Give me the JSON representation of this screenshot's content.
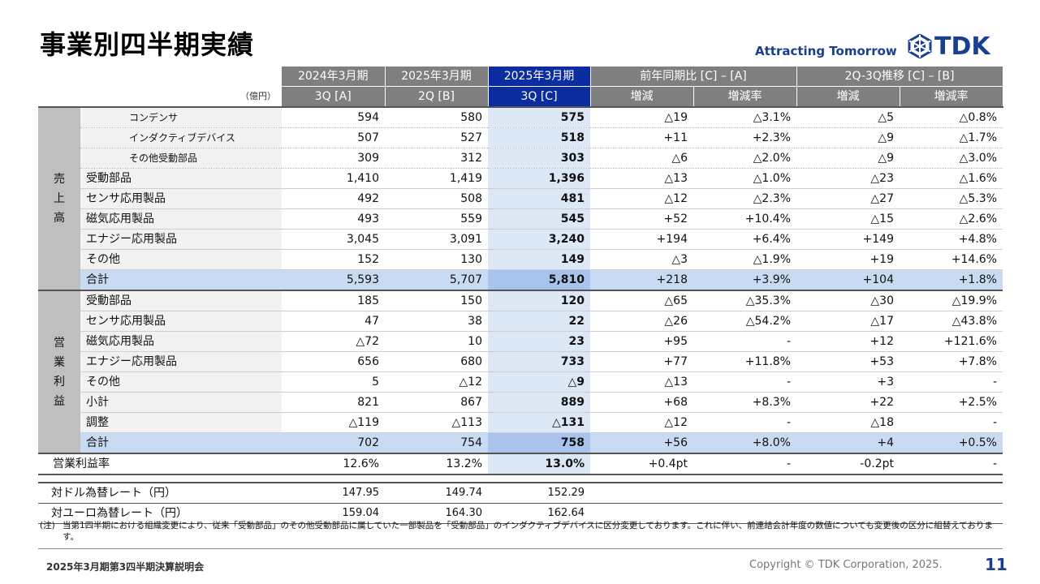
{
  "title": "事業別四半期実績",
  "tagline": "Attracting Tomorrow",
  "logo_text": "TDK",
  "header": {
    "periods": [
      "2024年3月期",
      "2025年3月期",
      "2025年3月期"
    ],
    "yoy_group": "前年同期比 [C] – [A]",
    "qoq_group": "2Q-3Q推移 [C] – [B]",
    "unit": "（億円）",
    "quarters": [
      "3Q [A]",
      "2Q [B]",
      "3Q [C]"
    ],
    "change": "増減",
    "rate": "増減率"
  },
  "sales": {
    "category": [
      "売",
      "上",
      "高"
    ],
    "rows": [
      {
        "label": "コンデンサ",
        "a": "594",
        "b": "580",
        "c": "575",
        "yoy": "△19",
        "yoy_rate": "△3.1%",
        "qoq": "△5",
        "qoq_rate": "△0.8%"
      },
      {
        "label": "インダクティブデバイス",
        "a": "507",
        "b": "527",
        "c": "518",
        "yoy": "+11",
        "yoy_rate": "+2.3%",
        "qoq": "△9",
        "qoq_rate": "△1.7%"
      },
      {
        "label": "その他受動部品",
        "a": "309",
        "b": "312",
        "c": "303",
        "yoy": "△6",
        "yoy_rate": "△2.0%",
        "qoq": "△9",
        "qoq_rate": "△3.0%"
      },
      {
        "label": "受動部品",
        "a": "1,410",
        "b": "1,419",
        "c": "1,396",
        "yoy": "△13",
        "yoy_rate": "△1.0%",
        "qoq": "△23",
        "qoq_rate": "△1.6%"
      },
      {
        "label": "センサ応用製品",
        "a": "492",
        "b": "508",
        "c": "481",
        "yoy": "△12",
        "yoy_rate": "△2.3%",
        "qoq": "△27",
        "qoq_rate": "△5.3%"
      },
      {
        "label": "磁気応用製品",
        "a": "493",
        "b": "559",
        "c": "545",
        "yoy": "+52",
        "yoy_rate": "+10.4%",
        "qoq": "△15",
        "qoq_rate": "△2.6%"
      },
      {
        "label": "エナジー応用製品",
        "a": "3,045",
        "b": "3,091",
        "c": "3,240",
        "yoy": "+194",
        "yoy_rate": "+6.4%",
        "qoq": "+149",
        "qoq_rate": "+4.8%"
      },
      {
        "label": "その他",
        "a": "152",
        "b": "130",
        "c": "149",
        "yoy": "△3",
        "yoy_rate": "△1.9%",
        "qoq": "+19",
        "qoq_rate": "+14.6%"
      },
      {
        "label": "合計",
        "a": "5,593",
        "b": "5,707",
        "c": "5,810",
        "yoy": "+218",
        "yoy_rate": "+3.9%",
        "qoq": "+104",
        "qoq_rate": "+1.8%"
      }
    ]
  },
  "op": {
    "category": [
      "営",
      "業",
      "利",
      "益"
    ],
    "rows": [
      {
        "label": "受動部品",
        "a": "185",
        "b": "150",
        "c": "120",
        "yoy": "△65",
        "yoy_rate": "△35.3%",
        "qoq": "△30",
        "qoq_rate": "△19.9%"
      },
      {
        "label": "センサ応用製品",
        "a": "47",
        "b": "38",
        "c": "22",
        "yoy": "△26",
        "yoy_rate": "△54.2%",
        "qoq": "△17",
        "qoq_rate": "△43.8%"
      },
      {
        "label": "磁気応用製品",
        "a": "△72",
        "b": "10",
        "c": "23",
        "yoy": "+95",
        "yoy_rate": "-",
        "qoq": "+12",
        "qoq_rate": "+121.6%"
      },
      {
        "label": "エナジー応用製品",
        "a": "656",
        "b": "680",
        "c": "733",
        "yoy": "+77",
        "yoy_rate": "+11.8%",
        "qoq": "+53",
        "qoq_rate": "+7.8%"
      },
      {
        "label": "その他",
        "a": "5",
        "b": "△12",
        "c": "△9",
        "yoy": "△13",
        "yoy_rate": "-",
        "qoq": "+3",
        "qoq_rate": "-"
      },
      {
        "label": "小計",
        "a": "821",
        "b": "867",
        "c": "889",
        "yoy": "+68",
        "yoy_rate": "+8.3%",
        "qoq": "+22",
        "qoq_rate": "+2.5%"
      },
      {
        "label": "調整",
        "a": "△119",
        "b": "△113",
        "c": "△131",
        "yoy": "△12",
        "yoy_rate": "-",
        "qoq": "△18",
        "qoq_rate": "-"
      },
      {
        "label": "合計",
        "a": "702",
        "b": "754",
        "c": "758",
        "yoy": "+56",
        "yoy_rate": "+8.0%",
        "qoq": "+4",
        "qoq_rate": "+0.5%"
      }
    ]
  },
  "margin": {
    "label": "営業利益率",
    "a": "12.6%",
    "b": "13.2%",
    "c": "13.0%",
    "yoy": "+0.4pt",
    "yoy_rate": "-",
    "qoq": "-0.2pt",
    "qoq_rate": "-"
  },
  "fx": [
    {
      "label": "対ドル為替レート（円）",
      "a": "147.95",
      "b": "149.74",
      "c": "152.29"
    },
    {
      "label": "対ユーロ為替レート（円）",
      "a": "159.04",
      "b": "164.30",
      "c": "162.64"
    }
  ],
  "note": {
    "mark": "(注)",
    "text": "当第1四半期における組織変更により、従来「受動部品」のその他受動部品に属していた一部製品を「受動部品」のインダクティブデバイスに区分変更しております。これに伴い、前連結会計年度の数値についても変更後の区分に組替えております。"
  },
  "footer": {
    "left": "2025年3月期第3四半期決算説明会",
    "copyright": "Copyright © TDK Corporation, 2025.",
    "page": "11"
  },
  "colors": {
    "brand": "#1a3f8f",
    "header_gray": "#7f7f7f",
    "header_blue": "#0c2da0",
    "highlight": "#dde8f6",
    "total": "#c9daf3"
  }
}
